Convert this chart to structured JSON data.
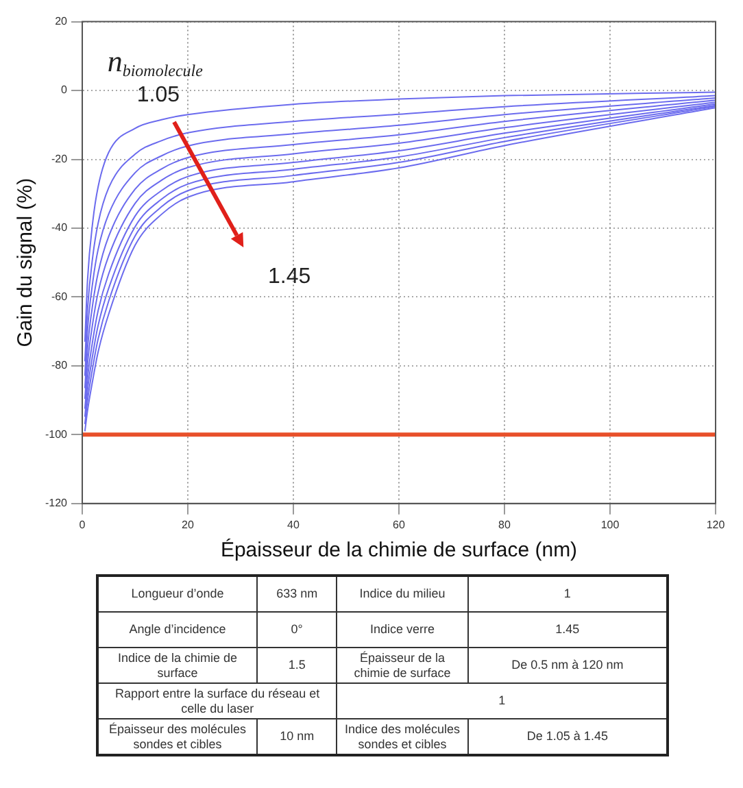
{
  "chart_data": {
    "type": "line",
    "xlabel": "Épaisseur de la chimie de surface (nm)",
    "ylabel": "Gain du signal (%)",
    "x": [
      0.5,
      1,
      2,
      3,
      5,
      10,
      15,
      20,
      40,
      60,
      80,
      120
    ],
    "xlim": [
      0,
      120
    ],
    "xticks": [
      0,
      20,
      40,
      60,
      80,
      100,
      120
    ],
    "ylim": [
      -120,
      20
    ],
    "yticks": [
      -120,
      -100,
      -80,
      -60,
      -40,
      -20,
      0,
      20
    ],
    "grid": true,
    "legend": false,
    "marker": "none",
    "series": [
      {
        "color": "#6b6bee",
        "values": [
          -73,
          -55,
          -38,
          -28,
          -18,
          -11,
          -8.5,
          -7,
          -4,
          -2.5,
          -1.5,
          -0.5
        ]
      },
      {
        "color": "#6b6bee",
        "values": [
          -78.7,
          -63.4,
          -48.1,
          -38.6,
          -28.3,
          -18.5,
          -14.6,
          -12.3,
          -9.0,
          -6.9,
          -4.7,
          -1.5
        ]
      },
      {
        "color": "#6b6bee",
        "values": [
          -82.9,
          -69.4,
          -55.5,
          -46.2,
          -35.9,
          -23.9,
          -19.0,
          -16.1,
          -12.6,
          -10.1,
          -7.0,
          -2.2
        ]
      },
      {
        "color": "#6b6bee",
        "values": [
          -86.5,
          -74.8,
          -61.9,
          -53.0,
          -42.4,
          -28.7,
          -22.8,
          -19.5,
          -15.7,
          -12.9,
          -9.0,
          -2.8
        ]
      },
      {
        "color": "#6b6bee",
        "values": [
          -89.6,
          -79.3,
          -67.4,
          -58.7,
          -48.1,
          -32.8,
          -26.1,
          -22.4,
          -18.4,
          -15.3,
          -10.8,
          -3.4
        ]
      },
      {
        "color": "#6b6bee",
        "values": [
          -92.5,
          -83.5,
          -72.5,
          -64,
          -53.3,
          -36.5,
          -29.1,
          -25,
          -20.9,
          -17.5,
          -12.4,
          -3.9
        ]
      },
      {
        "color": "#6b6bee",
        "values": [
          -94.8,
          -86.9,
          -76.6,
          -68.3,
          -57.5,
          -39.6,
          -31.6,
          -27.2,
          -22.9,
          -19.3,
          -13.7,
          -4.3
        ]
      },
      {
        "color": "#6b6bee",
        "values": [
          -96.9,
          -90.0,
          -80.3,
          -72.2,
          -61.2,
          -42.3,
          -33.8,
          -29.1,
          -24.7,
          -20.9,
          -14.8,
          -4.6
        ]
      },
      {
        "color": "#6b6bee",
        "values": [
          -99,
          -93,
          -84,
          -76,
          -65,
          -45,
          -36,
          -31,
          -26.5,
          -22.5,
          -16,
          -5
        ]
      },
      {
        "color": "#e8502a",
        "x": [
          0,
          120
        ],
        "values": [
          -100,
          -100
        ]
      }
    ],
    "annotations": [
      "n$_{biomolecule}$",
      "1.05",
      "1.45",
      "Longueur d’onde",
      "633 nm",
      "Indice du milieu",
      "1",
      "Angle d’incidence",
      "0°",
      "Indice verre",
      "1.45",
      "Indice de la chimie de surface",
      "1.5",
      "Épaisseur de la chimie de surface",
      "De 0.5 nm à 120 nm",
      "Rapport entre la surface du réseau et celle du laser",
      "1",
      "Épaisseur des molécules sondes et cibles",
      "10 nm",
      "Indice des molécules sondes et cibles",
      "De 1.05 à 1.45"
    ]
  }
}
